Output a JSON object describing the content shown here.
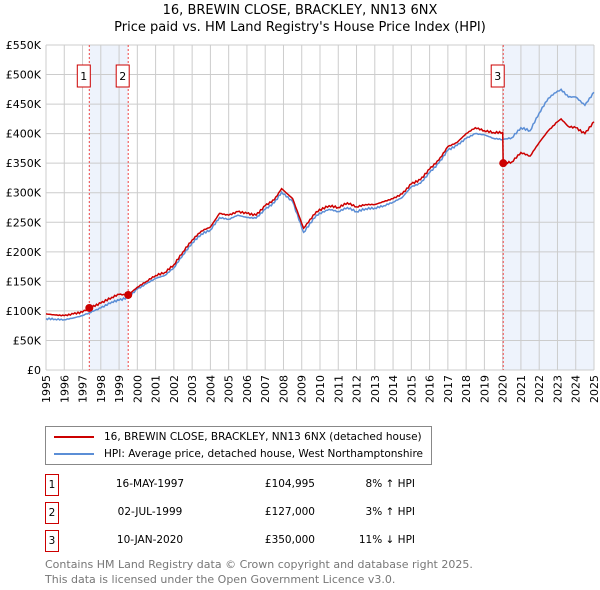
{
  "chart_data": {
    "type": "line",
    "title": "16, BREWIN CLOSE, BRACKLEY, NN13 6NX",
    "subtitle": "Price paid vs. HM Land Registry's House Price Index (HPI)",
    "xlim": [
      1995,
      2025
    ],
    "ylim": [
      0,
      550000
    ],
    "x_ticks": [
      "1995",
      "1996",
      "1997",
      "1998",
      "1999",
      "2000",
      "2001",
      "2002",
      "2003",
      "2004",
      "2005",
      "2006",
      "2007",
      "2008",
      "2009",
      "2010",
      "2011",
      "2012",
      "2013",
      "2014",
      "2015",
      "2016",
      "2017",
      "2018",
      "2019",
      "2020",
      "2021",
      "2022",
      "2023",
      "2024",
      "2025"
    ],
    "y_ticks": [
      {
        "v": 0,
        "l": "£0"
      },
      {
        "v": 50000,
        "l": "£50K"
      },
      {
        "v": 100000,
        "l": "£100K"
      },
      {
        "v": 150000,
        "l": "£150K"
      },
      {
        "v": 200000,
        "l": "£200K"
      },
      {
        "v": 250000,
        "l": "£250K"
      },
      {
        "v": 300000,
        "l": "£300K"
      },
      {
        "v": 350000,
        "l": "£350K"
      },
      {
        "v": 400000,
        "l": "£400K"
      },
      {
        "v": 450000,
        "l": "£450K"
      },
      {
        "v": 500000,
        "l": "£500K"
      },
      {
        "v": 550000,
        "l": "£550K"
      }
    ],
    "grid": true,
    "series": [
      {
        "name": "16, BREWIN CLOSE, BRACKLEY, NN13 6NX (detached house)",
        "color": "#cc0000",
        "x": [
          1995,
          1995.5,
          1996,
          1996.5,
          1997,
          1997.37,
          1998,
          1998.6,
          1999,
          1999.5,
          2000,
          2000.5,
          2001,
          2001.5,
          2002,
          2002.5,
          2003,
          2003.5,
          2004,
          2004.5,
          2005,
          2005.5,
          2006,
          2006.5,
          2007,
          2007.5,
          2007.9,
          2008.5,
          2009.1,
          2009.8,
          2010.5,
          2011,
          2011.5,
          2012,
          2012.5,
          2013,
          2013.5,
          2014,
          2014.5,
          2015,
          2015.5,
          2016,
          2016.5,
          2017,
          2017.5,
          2018,
          2018.5,
          2019,
          2019.5,
          2020.0,
          2020.03,
          2020.5,
          2021,
          2021.5,
          2022,
          2022.5,
          2023,
          2023.2,
          2023.6,
          2024,
          2024.5,
          2025
        ],
        "y": [
          95000,
          93000,
          92000,
          95000,
          98000,
          104995,
          113000,
          123000,
          128000,
          127000,
          140000,
          150000,
          160000,
          165000,
          178000,
          200000,
          220000,
          235000,
          242000,
          265000,
          262000,
          268000,
          265000,
          262000,
          278000,
          288000,
          307000,
          290000,
          240000,
          268000,
          278000,
          275000,
          283000,
          276000,
          280000,
          280000,
          285000,
          290000,
          298000,
          315000,
          322000,
          340000,
          355000,
          378000,
          385000,
          400000,
          410000,
          405000,
          402000,
          402000,
          350000,
          352000,
          368000,
          362000,
          385000,
          405000,
          420000,
          425000,
          412000,
          410000,
          400000,
          420000
        ]
      },
      {
        "name": "HPI: Average price, detached house, West Northamptonshire",
        "color": "#5b8ed6",
        "x": [
          1995,
          1995.5,
          1996,
          1996.5,
          1997,
          1997.37,
          1998,
          1998.6,
          1999,
          1999.5,
          2000,
          2000.5,
          2001,
          2001.5,
          2002,
          2002.5,
          2003,
          2003.5,
          2004,
          2004.5,
          2005,
          2005.5,
          2006,
          2006.5,
          2007,
          2007.5,
          2007.9,
          2008.5,
          2009.1,
          2009.8,
          2010.5,
          2011,
          2011.5,
          2012,
          2012.5,
          2013,
          2013.5,
          2014,
          2014.5,
          2015,
          2015.5,
          2016,
          2016.5,
          2017,
          2017.5,
          2018,
          2018.5,
          2019,
          2019.5,
          2020.0,
          2020.03,
          2020.5,
          2021,
          2021.5,
          2022,
          2022.5,
          2023,
          2023.2,
          2023.6,
          2024,
          2024.5,
          2025
        ],
        "y": [
          87000,
          86000,
          85000,
          88000,
          92000,
          97000,
          105000,
          115000,
          118000,
          123000,
          137000,
          146000,
          155000,
          160000,
          173000,
          195000,
          215000,
          230000,
          237000,
          258000,
          255000,
          262000,
          258000,
          257000,
          272000,
          283000,
          301000,
          285000,
          233000,
          262000,
          272000,
          268000,
          275000,
          268000,
          273000,
          274000,
          278000,
          284000,
          292000,
          310000,
          316000,
          334000,
          350000,
          372000,
          380000,
          392000,
          400000,
          398000,
          392000,
          390000,
          390000,
          393000,
          410000,
          405000,
          435000,
          460000,
          472000,
          475000,
          462000,
          462000,
          448000,
          470000
        ]
      }
    ],
    "shaded_ranges": [
      [
        1997.37,
        1999.5
      ],
      [
        2020.03,
        2025
      ]
    ],
    "sales": [
      {
        "label": "1",
        "x": 1997.37,
        "y": 104995
      },
      {
        "label": "2",
        "x": 1999.5,
        "y": 127000
      },
      {
        "label": "3",
        "x": 2020.03,
        "y": 350000
      }
    ]
  },
  "legend": {
    "items": [
      {
        "label": "16, BREWIN CLOSE, BRACKLEY, NN13 6NX (detached house)",
        "color": "#cc0000"
      },
      {
        "label": "HPI: Average price, detached house, West Northamptonshire",
        "color": "#5b8ed6"
      }
    ]
  },
  "table": [
    {
      "num": "1",
      "date": "16-MAY-1997",
      "price": "£104,995",
      "hpi": "8% ↑ HPI"
    },
    {
      "num": "2",
      "date": "02-JUL-1999",
      "price": "£127,000",
      "hpi": "3% ↑ HPI"
    },
    {
      "num": "3",
      "date": "10-JAN-2020",
      "price": "£350,000",
      "hpi": "11% ↓ HPI"
    }
  ],
  "footer": {
    "line1": "Contains HM Land Registry data © Crown copyright and database right 2025.",
    "line2": "This data is licensed under the Open Government Licence v3.0."
  }
}
